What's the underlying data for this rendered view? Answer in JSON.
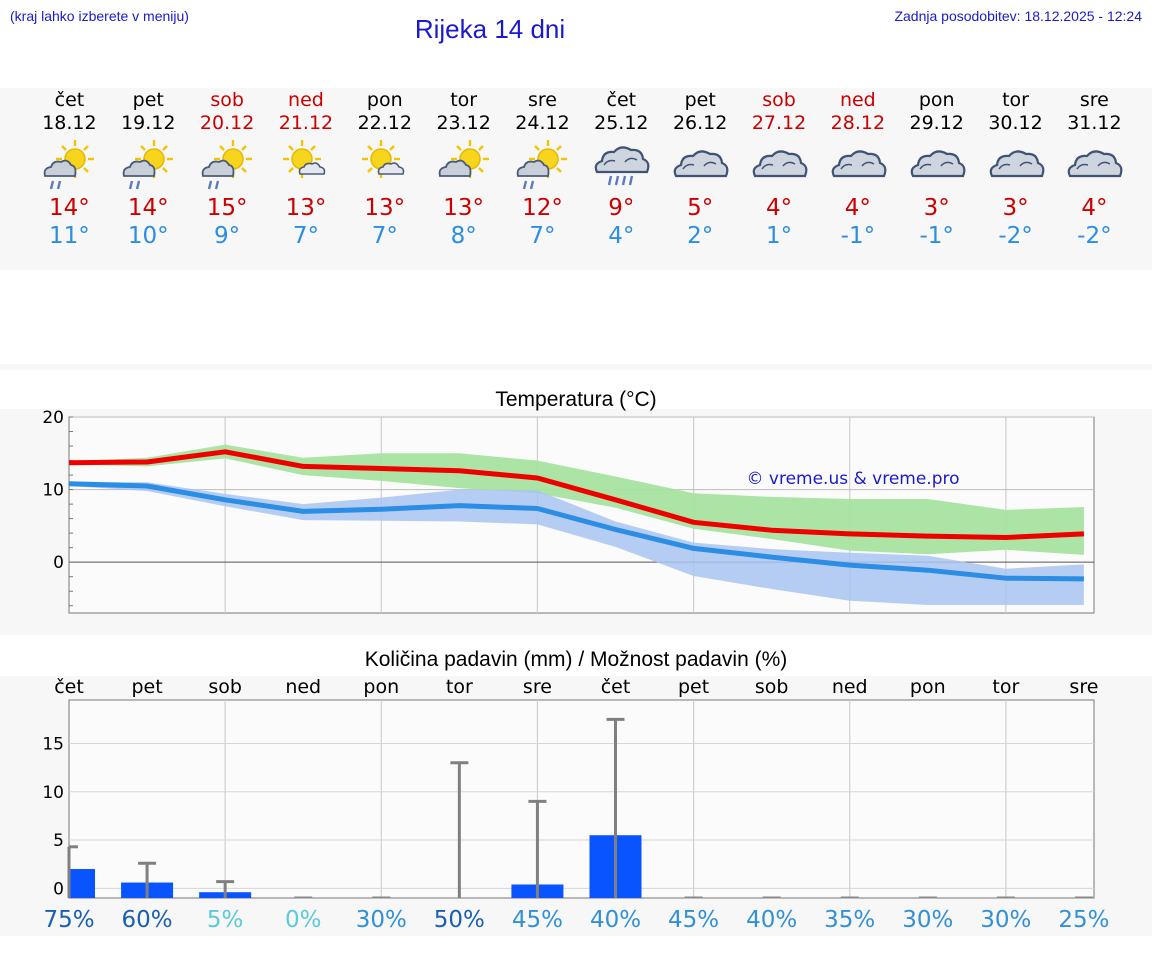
{
  "header": {
    "hint": "(kraj lahko izberete v meniju)",
    "title": "Rijeka 14 dni",
    "updated": "Zadnja posodobitev: 18.12.2025 - 12:24"
  },
  "colors": {
    "max": "#ee0000",
    "min": "#2b8de3",
    "max_band": "#a6e3a0",
    "min_band": "#a9c4f1",
    "bar": "#0a54ff",
    "whisker": "#808080"
  },
  "forecast": [
    {
      "day": "čet",
      "date": "18.12",
      "weekend": false,
      "icon": "sun-cloud-rain-icon",
      "tmax": "14°",
      "tmin": "11°"
    },
    {
      "day": "pet",
      "date": "19.12",
      "weekend": false,
      "icon": "sun-cloud-rain-icon",
      "tmax": "14°",
      "tmin": "10°"
    },
    {
      "day": "sob",
      "date": "20.12",
      "weekend": true,
      "icon": "sun-cloud-rain-icon",
      "tmax": "15°",
      "tmin": "9°"
    },
    {
      "day": "ned",
      "date": "21.12",
      "weekend": true,
      "icon": "sun-small-cloud-icon",
      "tmax": "13°",
      "tmin": "7°"
    },
    {
      "day": "pon",
      "date": "22.12",
      "weekend": false,
      "icon": "sun-small-cloud-icon",
      "tmax": "13°",
      "tmin": "7°"
    },
    {
      "day": "tor",
      "date": "23.12",
      "weekend": false,
      "icon": "sun-cloud-icon",
      "tmax": "13°",
      "tmin": "8°"
    },
    {
      "day": "sre",
      "date": "24.12",
      "weekend": false,
      "icon": "sun-cloud-rain-icon",
      "tmax": "12°",
      "tmin": "7°"
    },
    {
      "day": "čet",
      "date": "25.12",
      "weekend": false,
      "icon": "cloud-rain-icon",
      "tmax": "9°",
      "tmin": "4°"
    },
    {
      "day": "pet",
      "date": "26.12",
      "weekend": false,
      "icon": "cloud-icon",
      "tmax": "5°",
      "tmin": "2°"
    },
    {
      "day": "sob",
      "date": "27.12",
      "weekend": true,
      "icon": "cloud-icon",
      "tmax": "4°",
      "tmin": "1°"
    },
    {
      "day": "ned",
      "date": "28.12",
      "weekend": true,
      "icon": "cloud-icon",
      "tmax": "4°",
      "tmin": "-1°"
    },
    {
      "day": "pon",
      "date": "29.12",
      "weekend": false,
      "icon": "cloud-icon",
      "tmax": "3°",
      "tmin": "-1°"
    },
    {
      "day": "tor",
      "date": "30.12",
      "weekend": false,
      "icon": "cloud-icon",
      "tmax": "3°",
      "tmin": "-2°"
    },
    {
      "day": "sre",
      "date": "31.12",
      "weekend": false,
      "icon": "cloud-icon",
      "tmax": "4°",
      "tmin": "-2°"
    }
  ],
  "chart_data": [
    {
      "type": "line",
      "title": "Temperatura (°C)",
      "watermark": "© vreme.us & vreme.pro",
      "x": [
        0,
        1,
        2,
        3,
        4,
        5,
        6,
        7,
        8,
        9,
        10,
        11,
        12,
        13
      ],
      "ylim": [
        -7,
        20
      ],
      "yticks": [
        0,
        10,
        20
      ],
      "series": [
        {
          "name": "max",
          "values": [
            13.7,
            13.8,
            15.2,
            13.2,
            12.9,
            12.6,
            11.6,
            8.6,
            5.5,
            4.4,
            3.9,
            3.6,
            3.4,
            3.9
          ],
          "band_low": [
            13.5,
            13.2,
            14.3,
            12.0,
            11.2,
            10.2,
            9.5,
            7.5,
            4.6,
            3.2,
            1.6,
            1.1,
            1.7,
            1.0
          ],
          "band_high": [
            13.9,
            14.4,
            16.2,
            14.4,
            15.0,
            15.0,
            14.0,
            11.8,
            9.5,
            9.0,
            8.7,
            8.7,
            7.2,
            7.6
          ]
        },
        {
          "name": "min",
          "values": [
            10.8,
            10.5,
            8.6,
            7.0,
            7.3,
            7.8,
            7.4,
            4.5,
            1.9,
            0.7,
            -0.4,
            -1.1,
            -2.2,
            -2.3
          ],
          "band_low": [
            10.5,
            9.8,
            7.7,
            5.8,
            5.7,
            5.6,
            5.2,
            2.1,
            -1.9,
            -3.7,
            -5.3,
            -5.9,
            -5.9,
            -5.9
          ],
          "band_high": [
            11.1,
            11.0,
            9.4,
            8.0,
            8.9,
            10.0,
            9.9,
            5.6,
            2.7,
            1.8,
            1.3,
            0.9,
            -0.9,
            -0.3
          ]
        }
      ]
    },
    {
      "type": "bar",
      "title": "Količina padavin (mm) / Možnost padavin (%)",
      "categories": [
        "čet",
        "pet",
        "sob",
        "ned",
        "pon",
        "tor",
        "sre",
        "čet",
        "pet",
        "sob",
        "ned",
        "pon",
        "tor",
        "sre"
      ],
      "ylim": [
        -1,
        19.5
      ],
      "yticks": [
        0,
        5,
        10,
        15
      ],
      "values": [
        2.0,
        0.6,
        -0.4,
        0,
        0,
        0,
        0.4,
        5.5,
        0,
        0,
        0,
        0,
        0,
        0
      ],
      "whisker_high": [
        4.3,
        2.6,
        0.7,
        0,
        0,
        13.0,
        9.0,
        17.5,
        0,
        0,
        0,
        0,
        0,
        0
      ],
      "probability": [
        {
          "label": "75%",
          "color": "#1a5fb4"
        },
        {
          "label": "60%",
          "color": "#1a5fb4"
        },
        {
          "label": "5%",
          "color": "#5ccad8"
        },
        {
          "label": "0%",
          "color": "#5ccad8"
        },
        {
          "label": "30%",
          "color": "#3290d6"
        },
        {
          "label": "50%",
          "color": "#1a5fb4"
        },
        {
          "label": "45%",
          "color": "#3290d6"
        },
        {
          "label": "40%",
          "color": "#3290d6"
        },
        {
          "label": "45%",
          "color": "#3290d6"
        },
        {
          "label": "40%",
          "color": "#3290d6"
        },
        {
          "label": "35%",
          "color": "#3290d6"
        },
        {
          "label": "30%",
          "color": "#3290d6"
        },
        {
          "label": "30%",
          "color": "#3290d6"
        },
        {
          "label": "25%",
          "color": "#3290d6"
        }
      ]
    }
  ]
}
